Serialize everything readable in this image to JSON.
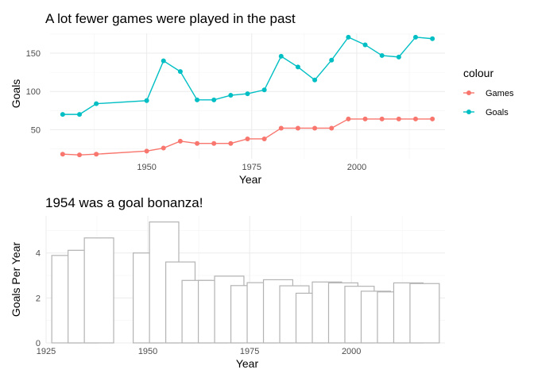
{
  "chart_data": [
    {
      "type": "line",
      "title": "A lot fewer games were played in the past",
      "xlabel": "Year",
      "ylabel": "Goals",
      "x": [
        1930,
        1934,
        1938,
        1950,
        1954,
        1958,
        1962,
        1966,
        1970,
        1974,
        1978,
        1982,
        1986,
        1990,
        1994,
        1998,
        2002,
        2006,
        2010,
        2014,
        2018
      ],
      "series": [
        {
          "name": "Games",
          "color": "#F8766D",
          "values": [
            18,
            17,
            18,
            22,
            26,
            35,
            32,
            32,
            32,
            38,
            38,
            52,
            52,
            52,
            52,
            64,
            64,
            64,
            64,
            64,
            64
          ]
        },
        {
          "name": "Goals",
          "color": "#00BFC4",
          "values": [
            70,
            70,
            84,
            88,
            140,
            126,
            89,
            89,
            95,
            97,
            102,
            146,
            132,
            115,
            141,
            171,
            161,
            147,
            145,
            171,
            169
          ]
        }
      ],
      "xlim": [
        1927,
        2021
      ],
      "ylim": [
        12,
        176
      ],
      "x_ticks": [
        1950,
        1975,
        2000
      ],
      "y_ticks": [
        50,
        100,
        150
      ],
      "legend": {
        "title": "colour",
        "position": "right"
      },
      "grid": true
    },
    {
      "type": "bar",
      "title": "1954 was a goal bonanza!",
      "xlabel": "Year",
      "ylabel": "Goals Per Year",
      "x": [
        1930,
        1934,
        1938,
        1950,
        1954,
        1958,
        1962,
        1966,
        1970,
        1974,
        1978,
        1982,
        1986,
        1990,
        1994,
        1998,
        2002,
        2006,
        2010,
        2014,
        2018
      ],
      "values": [
        3.89,
        4.12,
        4.67,
        4.0,
        5.38,
        3.6,
        2.78,
        2.78,
        2.97,
        2.55,
        2.68,
        2.81,
        2.54,
        2.21,
        2.71,
        2.67,
        2.52,
        2.3,
        2.27,
        2.67,
        2.64
      ],
      "bar_fill": "#ffffff",
      "bar_stroke": "#b3b3b3",
      "xlim": [
        1925,
        2023
      ],
      "ylim": [
        0,
        5.65
      ],
      "x_ticks": [
        1925,
        1950,
        1975,
        2000
      ],
      "y_ticks": [
        0,
        2,
        4
      ],
      "grid": true
    }
  ]
}
